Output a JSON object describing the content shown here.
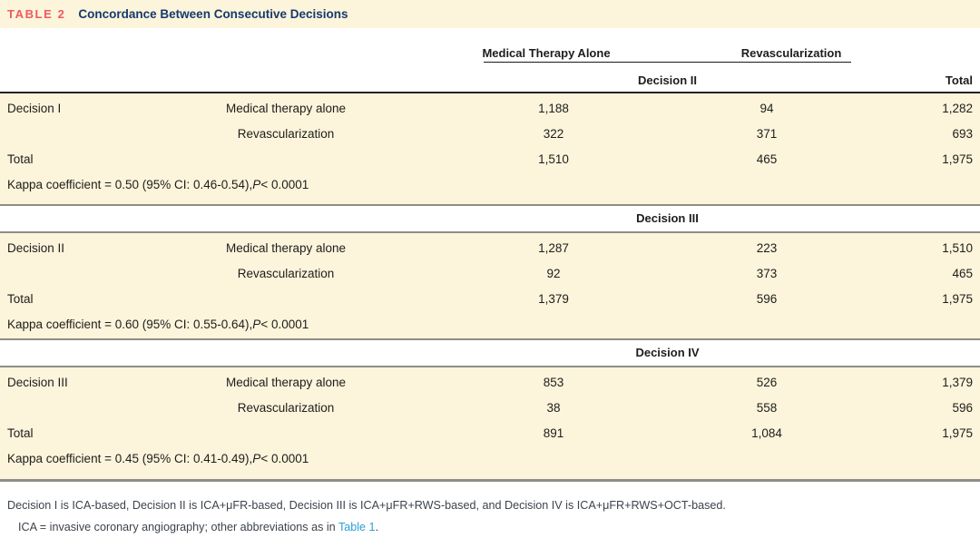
{
  "table_tag": "TABLE 2",
  "table_title": "Concordance Between Consecutive Decisions",
  "columns": {
    "group1": "Medical Therapy Alone",
    "group2": "Revascularization",
    "total": "Total"
  },
  "sections": [
    {
      "decision_header": "Decision II",
      "rows": [
        {
          "label": "Decision I",
          "sub": "Medical therapy alone",
          "v1": "1,188",
          "v2": "94",
          "total": "1,282"
        },
        {
          "label": "",
          "sub": "Revascularization",
          "v1": "322",
          "v2": "371",
          "total": "693"
        },
        {
          "label": "Total",
          "sub": "",
          "v1": "1,510",
          "v2": "465",
          "total": "1,975"
        }
      ],
      "kappa": {
        "prefix": "Kappa coefficient = 0.50 (95% CI: 0.46-0.54), ",
        "p": "P",
        "suffix": " < 0.0001"
      }
    },
    {
      "decision_header": "Decision III",
      "rows": [
        {
          "label": "Decision II",
          "sub": "Medical therapy alone",
          "v1": "1,287",
          "v2": "223",
          "total": "1,510"
        },
        {
          "label": "",
          "sub": "Revascularization",
          "v1": "92",
          "v2": "373",
          "total": "465"
        },
        {
          "label": "Total",
          "sub": "",
          "v1": "1,379",
          "v2": "596",
          "total": "1,975"
        }
      ],
      "kappa": {
        "prefix": "Kappa coefficient = 0.60 (95% CI: 0.55-0.64), ",
        "p": "P",
        "suffix": " < 0.0001"
      }
    },
    {
      "decision_header": "Decision IV",
      "rows": [
        {
          "label": "Decision III",
          "sub": "Medical therapy alone",
          "v1": "853",
          "v2": "526",
          "total": "1,379"
        },
        {
          "label": "",
          "sub": "Revascularization",
          "v1": "38",
          "v2": "558",
          "total": "596"
        },
        {
          "label": "Total",
          "sub": "",
          "v1": "891",
          "v2": "1,084",
          "total": "1,975"
        }
      ],
      "kappa": {
        "prefix": "Kappa coefficient = 0.45 (95% CI: 0.41-0.49), ",
        "p": "P",
        "suffix": " < 0.0001"
      }
    }
  ],
  "footnotes": {
    "line1": "Decision I is ICA-based, Decision II is ICA+μFR-based, Decision III is ICA+μFR+RWS-based, and Decision IV is ICA+μFR+RWS+OCT-based.",
    "line2_prefix": "ICA = invasive coronary angiography; other abbreviations as in ",
    "line2_link": "Table 1",
    "line2_suffix": "."
  },
  "colors": {
    "table_tag_red": "#ef5a5e",
    "title_navy": "#163a6e",
    "block_beige": "#fcf4db",
    "rule_gray": "#8e8e87",
    "link_blue": "#2d9ed8"
  }
}
